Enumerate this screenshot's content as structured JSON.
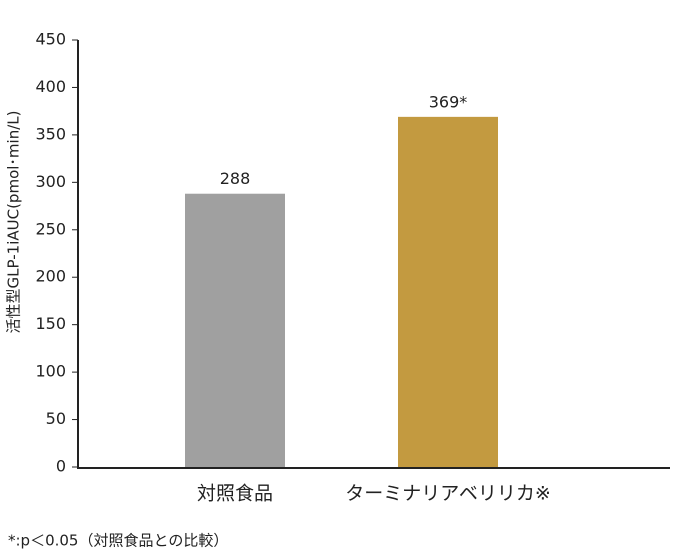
{
  "chart_data": {
    "type": "bar",
    "y_label": "活性型GLP-1iAUC(pmol･min/L)",
    "categories": [
      "対照食品",
      "ターミナリアベリリカ※"
    ],
    "values": [
      288,
      369
    ],
    "value_labels": [
      "288",
      "369*"
    ],
    "colors": [
      "#a0a0a0",
      "#c39a40"
    ],
    "ylim": [
      0,
      450
    ],
    "yticks": [
      0,
      50,
      100,
      150,
      200,
      250,
      300,
      350,
      400,
      450
    ],
    "grid": false,
    "footnote": "*:p＜0.05（対照食品との比較）"
  }
}
